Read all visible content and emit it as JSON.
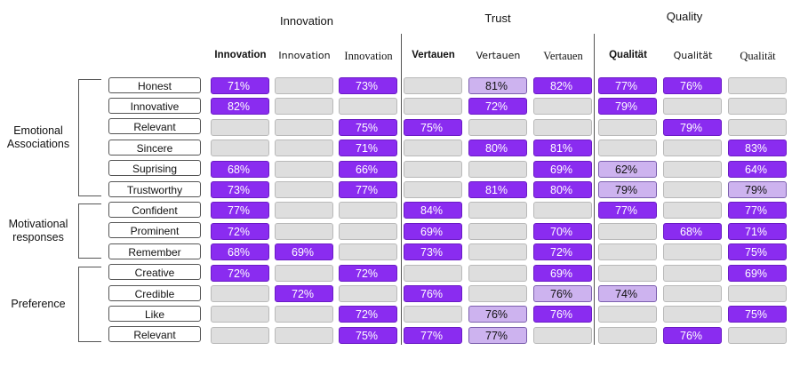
{
  "chart_data": {
    "type": "table",
    "groups": [
      "Innovation",
      "Trust",
      "Quality"
    ],
    "columns": [
      "Innovation",
      "Innovation",
      "Innovation",
      "Vertauen",
      "Vertauen",
      "Vertauen",
      "Qualität",
      "Qualität",
      "Qualität"
    ],
    "categories": [
      {
        "label": "Emotional\nAssociations",
        "rows": [
          0,
          5
        ]
      },
      {
        "label": "Motivational\nresponses",
        "rows": [
          6,
          8
        ]
      },
      {
        "label": "Preference",
        "rows": [
          9,
          12
        ]
      }
    ],
    "rows": [
      {
        "label": "Honest",
        "values": [
          "71%",
          null,
          "73%",
          null,
          "81%",
          "82%",
          "77%",
          "76%",
          null
        ],
        "styles": [
          "dark",
          "empty",
          "dark",
          "empty",
          "light",
          "dark",
          "dark",
          "dark",
          "empty"
        ]
      },
      {
        "label": "Innovative",
        "values": [
          "82%",
          null,
          null,
          null,
          "72%",
          null,
          "79%",
          null,
          null
        ],
        "styles": [
          "dark",
          "empty",
          "empty",
          "empty",
          "dark",
          "empty",
          "dark",
          "empty",
          "empty"
        ]
      },
      {
        "label": "Relevant",
        "values": [
          null,
          null,
          "75%",
          "75%",
          null,
          null,
          null,
          "79%",
          null
        ],
        "styles": [
          "empty",
          "empty",
          "dark",
          "dark",
          "empty",
          "empty",
          "empty",
          "dark",
          "empty"
        ]
      },
      {
        "label": "Sincere",
        "values": [
          null,
          null,
          "71%",
          null,
          "80%",
          "81%",
          null,
          null,
          "83%"
        ],
        "styles": [
          "empty",
          "empty",
          "dark",
          "empty",
          "dark",
          "dark",
          "empty",
          "empty",
          "dark"
        ]
      },
      {
        "label": "Suprising",
        "values": [
          "68%",
          null,
          "66%",
          null,
          null,
          "69%",
          "62%",
          null,
          "64%"
        ],
        "styles": [
          "dark",
          "empty",
          "dark",
          "empty",
          "empty",
          "dark",
          "light",
          "empty",
          "dark"
        ]
      },
      {
        "label": "Trustworthy",
        "values": [
          "73%",
          null,
          "77%",
          null,
          "81%",
          "80%",
          "79%",
          null,
          "79%"
        ],
        "styles": [
          "dark",
          "empty",
          "dark",
          "empty",
          "dark",
          "dark",
          "light",
          "empty",
          "light"
        ]
      },
      {
        "label": "Confident",
        "values": [
          "77%",
          null,
          null,
          "84%",
          null,
          null,
          "77%",
          null,
          "77%"
        ],
        "styles": [
          "dark",
          "empty",
          "empty",
          "dark",
          "empty",
          "empty",
          "dark",
          "empty",
          "dark"
        ]
      },
      {
        "label": "Prominent",
        "values": [
          "72%",
          null,
          null,
          "69%",
          null,
          "70%",
          null,
          "68%",
          "71%"
        ],
        "styles": [
          "dark",
          "empty",
          "empty",
          "dark",
          "empty",
          "dark",
          "empty",
          "dark",
          "dark"
        ]
      },
      {
        "label": "Remember",
        "values": [
          "68%",
          "69%",
          null,
          "73%",
          null,
          "72%",
          null,
          null,
          "75%"
        ],
        "styles": [
          "dark",
          "dark",
          "empty",
          "dark",
          "empty",
          "dark",
          "empty",
          "empty",
          "dark"
        ]
      },
      {
        "label": "Creative",
        "values": [
          "72%",
          null,
          "72%",
          null,
          null,
          "69%",
          null,
          null,
          "69%"
        ],
        "styles": [
          "dark",
          "empty",
          "dark",
          "empty",
          "empty",
          "dark",
          "empty",
          "empty",
          "dark"
        ]
      },
      {
        "label": "Credible",
        "values": [
          null,
          "72%",
          null,
          "76%",
          null,
          "76%",
          "74%",
          null,
          null
        ],
        "styles": [
          "empty",
          "dark",
          "empty",
          "dark",
          "empty",
          "light",
          "light",
          "empty",
          "empty"
        ]
      },
      {
        "label": "Like",
        "values": [
          null,
          null,
          "72%",
          null,
          "76%",
          "76%",
          null,
          null,
          "75%"
        ],
        "styles": [
          "empty",
          "empty",
          "dark",
          "empty",
          "light",
          "dark",
          "empty",
          "empty",
          "dark"
        ]
      },
      {
        "label": "Relevant",
        "values": [
          null,
          null,
          "75%",
          "77%",
          "77%",
          null,
          null,
          "76%",
          null
        ],
        "styles": [
          "empty",
          "empty",
          "dark",
          "dark",
          "light",
          "empty",
          "empty",
          "dark",
          "empty"
        ]
      }
    ],
    "colors": {
      "dark": "#8a2cf0",
      "light": "#cdb3ef",
      "empty": "#dedede"
    }
  }
}
